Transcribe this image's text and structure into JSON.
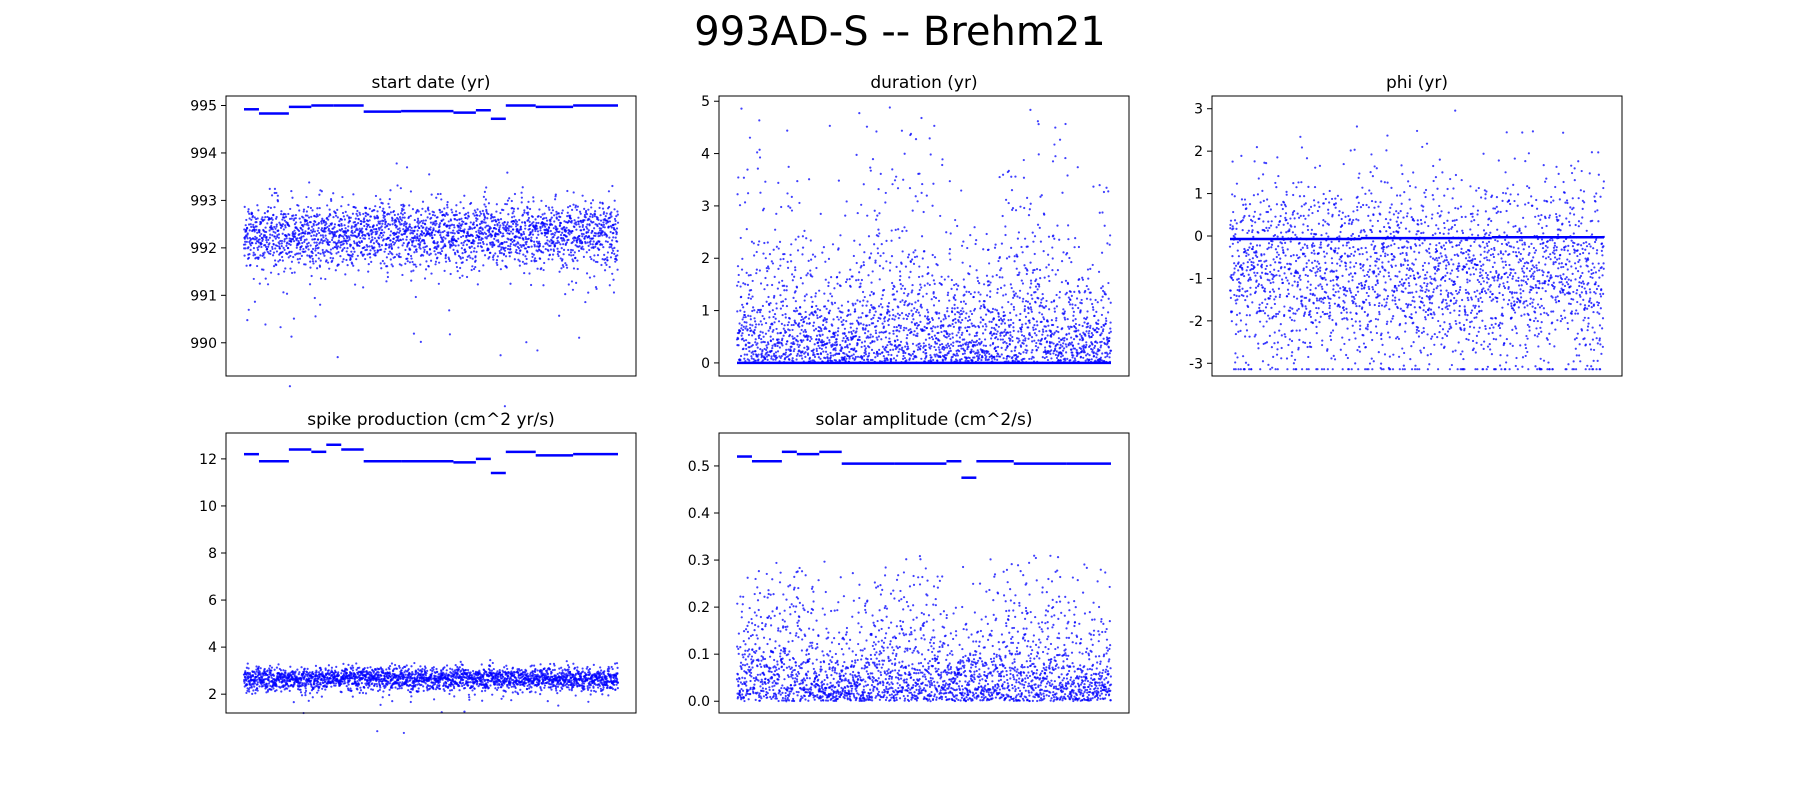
{
  "figure": {
    "title": "993AD-S -- Brehm21",
    "point_color": "#0000ff"
  },
  "chart_data": [
    {
      "type": "scatter",
      "title": "start date (yr)",
      "xlabel": "",
      "ylabel": "",
      "grid": false,
      "ylim": [
        989.3,
        995.2
      ],
      "yticks": [
        990,
        991,
        992,
        993,
        994,
        995
      ],
      "xticks": [],
      "description_of_series": "about 9000 MCMC samples per walker plotted as dots; a dense band near 992.3 and flat walker traces near 995",
      "series": [
        {
          "name": "samples",
          "kind": "band",
          "center": 992.3,
          "spread": 0.35,
          "n": 9000
        },
        {
          "name": "stuck-walkers",
          "kind": "steps",
          "steps": [
            [
              0.0,
              0.04,
              994.92
            ],
            [
              0.04,
              0.12,
              994.83
            ],
            [
              0.12,
              0.18,
              994.97
            ],
            [
              0.18,
              0.24,
              995.0
            ],
            [
              0.24,
              0.32,
              995.0
            ],
            [
              0.32,
              0.42,
              994.87
            ],
            [
              0.42,
              0.56,
              994.88
            ],
            [
              0.56,
              0.62,
              994.85
            ],
            [
              0.62,
              0.66,
              994.9
            ],
            [
              0.66,
              0.7,
              994.72
            ],
            [
              0.7,
              0.78,
              995.0
            ],
            [
              0.78,
              0.88,
              994.97
            ],
            [
              0.88,
              1.0,
              995.0
            ]
          ]
        }
      ]
    },
    {
      "type": "scatter",
      "title": "duration (yr)",
      "xlabel": "",
      "ylabel": "",
      "grid": false,
      "ylim": [
        -0.25,
        5.1
      ],
      "yticks": [
        0,
        1,
        2,
        3,
        4,
        5
      ],
      "xticks": [],
      "series": [
        {
          "name": "samples",
          "kind": "skewed",
          "min": 0.0,
          "scale": 0.9,
          "max": 4.9,
          "n": 9000
        },
        {
          "name": "stuck-walkers",
          "kind": "steps",
          "steps": [
            [
              0.0,
              1.0,
              0.0
            ]
          ]
        }
      ]
    },
    {
      "type": "scatter",
      "title": "phi (yr)",
      "xlabel": "",
      "ylabel": "",
      "grid": false,
      "ylim": [
        -3.3,
        3.3
      ],
      "yticks": [
        -3,
        -2,
        -1,
        0,
        1,
        2,
        3
      ],
      "xticks": [],
      "series": [
        {
          "name": "samples",
          "kind": "band",
          "center": -0.8,
          "spread": 1.1,
          "n": 9000,
          "clip": [
            -3.14,
            3.14
          ]
        },
        {
          "name": "stuck-walkers",
          "kind": "steps",
          "steps": [
            [
              0.0,
              0.35,
              -0.07
            ],
            [
              0.35,
              0.7,
              -0.05
            ],
            [
              0.7,
              1.0,
              -0.03
            ]
          ]
        }
      ]
    },
    {
      "type": "scatter",
      "title": "spike production (cm^2 yr/s)",
      "xlabel": "",
      "ylabel": "",
      "grid": false,
      "ylim": [
        1.2,
        13.1
      ],
      "yticks": [
        2,
        4,
        6,
        8,
        10,
        12
      ],
      "xticks": [],
      "series": [
        {
          "name": "samples",
          "kind": "band",
          "center": 2.65,
          "spread": 0.25,
          "n": 9000
        },
        {
          "name": "stuck-walkers",
          "kind": "steps",
          "steps": [
            [
              0.0,
              0.04,
              12.2
            ],
            [
              0.04,
              0.12,
              11.9
            ],
            [
              0.12,
              0.18,
              12.4
            ],
            [
              0.18,
              0.22,
              12.3
            ],
            [
              0.22,
              0.26,
              12.6
            ],
            [
              0.26,
              0.32,
              12.4
            ],
            [
              0.32,
              0.42,
              11.9
            ],
            [
              0.42,
              0.56,
              11.9
            ],
            [
              0.56,
              0.62,
              11.85
            ],
            [
              0.62,
              0.66,
              12.0
            ],
            [
              0.66,
              0.7,
              11.4
            ],
            [
              0.7,
              0.78,
              12.3
            ],
            [
              0.78,
              0.88,
              12.15
            ],
            [
              0.88,
              1.0,
              12.2
            ]
          ]
        }
      ]
    },
    {
      "type": "scatter",
      "title": "solar amplitude (cm^2/s)",
      "xlabel": "",
      "ylabel": "",
      "grid": false,
      "ylim": [
        -0.025,
        0.57
      ],
      "yticks": [
        0.0,
        0.1,
        0.2,
        0.3,
        0.4,
        0.5
      ],
      "xticks": [],
      "series": [
        {
          "name": "samples",
          "kind": "skewed",
          "min": 0.0,
          "scale": 0.085,
          "max": 0.31,
          "n": 9000
        },
        {
          "name": "stuck-walkers",
          "kind": "steps",
          "steps": [
            [
              0.0,
              0.04,
              0.52
            ],
            [
              0.04,
              0.12,
              0.51
            ],
            [
              0.12,
              0.16,
              0.53
            ],
            [
              0.16,
              0.22,
              0.525
            ],
            [
              0.22,
              0.28,
              0.53
            ],
            [
              0.28,
              0.42,
              0.505
            ],
            [
              0.42,
              0.56,
              0.505
            ],
            [
              0.56,
              0.6,
              0.51
            ],
            [
              0.6,
              0.64,
              0.475
            ],
            [
              0.64,
              0.74,
              0.51
            ],
            [
              0.74,
              0.88,
              0.505
            ],
            [
              0.88,
              1.0,
              0.505
            ]
          ]
        }
      ]
    }
  ]
}
